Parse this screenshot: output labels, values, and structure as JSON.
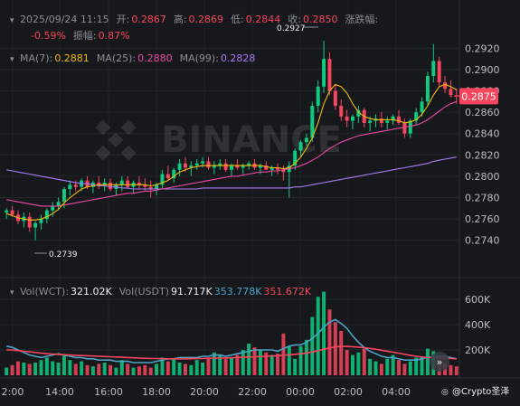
{
  "header": {
    "line1": [
      {
        "text": "2025/09/24 11:15",
        "color": "#8b8e96"
      },
      {
        "text": "开:",
        "color": "#8b8e96"
      },
      {
        "text": "0.2867",
        "color": "#f6465d"
      },
      {
        "text": "高:",
        "color": "#8b8e96"
      },
      {
        "text": "0.2869",
        "color": "#f6465d"
      },
      {
        "text": "低:",
        "color": "#8b8e96"
      },
      {
        "text": "0.2844",
        "color": "#f6465d"
      },
      {
        "text": "收:",
        "color": "#8b8e96"
      },
      {
        "text": "0.2850",
        "color": "#f6465d"
      },
      {
        "text": "涨跌幅:",
        "color": "#8b8e96"
      }
    ],
    "line2": [
      {
        "text": "-0.59%",
        "color": "#f6465d"
      },
      {
        "text": "振幅:",
        "color": "#8b8e96"
      },
      {
        "text": "0.87%",
        "color": "#f6465d"
      }
    ],
    "ma": [
      {
        "text": "MA(7):",
        "color": "#8b8e96"
      },
      {
        "text": "0.2881",
        "color": "#f0b90b"
      },
      {
        "text": "MA(25):",
        "color": "#8b8e96"
      },
      {
        "text": "0.2880",
        "color": "#e84aa3"
      },
      {
        "text": "MA(99):",
        "color": "#8b8e96"
      },
      {
        "text": "0.2828",
        "color": "#a57bf5"
      }
    ],
    "vol": [
      {
        "text": "Vol(WCT):",
        "color": "#8b8e96"
      },
      {
        "text": "321.02K",
        "color": "#eaecef"
      },
      {
        "text": "Vol(USDT)",
        "color": "#8b8e96"
      },
      {
        "text": "91.717K",
        "color": "#eaecef"
      },
      {
        "text": "353.778K",
        "color": "#4ba3c7"
      },
      {
        "text": "351.672K",
        "color": "#f6465d"
      }
    ]
  },
  "price_badge": "0.2875",
  "high_label": "0.2927",
  "low_label": "0.2739",
  "watermark": "BINANCE",
  "footer_brand": "@Crypto圣泽",
  "colors": {
    "up": "#0ecb81",
    "down": "#f6465d",
    "ma7": "#f0b90b",
    "ma25": "#e84aa3",
    "ma99": "#a57bf5",
    "vol_ma1": "#4ba3c7",
    "vol_ma2": "#f6465d"
  },
  "chart_data": {
    "type": "candlestick",
    "y_ticks": [
      "0.2920",
      "0.2900",
      "0.2880",
      "0.2860",
      "0.2840",
      "0.2820",
      "0.2800",
      "0.2780",
      "0.2760",
      "0.2740"
    ],
    "ylim": [
      0.2727,
      0.2933
    ],
    "vol_ticks": [
      "600K",
      "400K",
      "200K"
    ],
    "vol_max": 700000,
    "x_ticks": [
      "2:00",
      "14:00",
      "16:00",
      "18:00",
      "20:00",
      "22:00",
      "00:00",
      "02:00",
      "04:00"
    ],
    "candles": [
      [
        0.2766,
        0.277,
        0.276,
        0.2768,
        60000
      ],
      [
        0.2768,
        0.2772,
        0.2762,
        0.2764,
        80000
      ],
      [
        0.2764,
        0.2768,
        0.2755,
        0.2758,
        110000
      ],
      [
        0.2758,
        0.2766,
        0.2752,
        0.2762,
        100000
      ],
      [
        0.2762,
        0.2766,
        0.2748,
        0.2752,
        90000
      ],
      [
        0.2752,
        0.2758,
        0.274,
        0.2756,
        100000
      ],
      [
        0.2756,
        0.2764,
        0.275,
        0.276,
        120000
      ],
      [
        0.276,
        0.277,
        0.2756,
        0.2768,
        140000
      ],
      [
        0.2768,
        0.2776,
        0.2762,
        0.2772,
        110000
      ],
      [
        0.2772,
        0.278,
        0.2768,
        0.2776,
        100000
      ],
      [
        0.2776,
        0.279,
        0.277,
        0.2788,
        160000
      ],
      [
        0.2788,
        0.2796,
        0.2782,
        0.2792,
        120000
      ],
      [
        0.2792,
        0.2796,
        0.2786,
        0.279,
        90000
      ],
      [
        0.279,
        0.2798,
        0.2786,
        0.2796,
        110000
      ],
      [
        0.2796,
        0.28,
        0.2788,
        0.279,
        80000
      ],
      [
        0.279,
        0.2796,
        0.2784,
        0.2794,
        70000
      ],
      [
        0.2794,
        0.28,
        0.2788,
        0.2792,
        90000
      ],
      [
        0.2792,
        0.2798,
        0.2786,
        0.2794,
        100000
      ],
      [
        0.2794,
        0.2798,
        0.2786,
        0.2788,
        80000
      ],
      [
        0.2788,
        0.2794,
        0.2782,
        0.2792,
        60000
      ],
      [
        0.2792,
        0.28,
        0.2786,
        0.2796,
        120000
      ],
      [
        0.2796,
        0.28,
        0.2788,
        0.279,
        90000
      ],
      [
        0.279,
        0.2796,
        0.2784,
        0.2794,
        60000
      ],
      [
        0.2794,
        0.28,
        0.2788,
        0.2792,
        70000
      ],
      [
        0.2792,
        0.2798,
        0.2786,
        0.279,
        80000
      ],
      [
        0.279,
        0.2796,
        0.278,
        0.2788,
        60000
      ],
      [
        0.2788,
        0.2794,
        0.2782,
        0.2792,
        90000
      ],
      [
        0.2792,
        0.2806,
        0.2788,
        0.2802,
        140000
      ],
      [
        0.2802,
        0.281,
        0.2796,
        0.2798,
        110000
      ],
      [
        0.2798,
        0.2808,
        0.2794,
        0.2806,
        130000
      ],
      [
        0.2806,
        0.2816,
        0.28,
        0.2812,
        100000
      ],
      [
        0.2812,
        0.2818,
        0.2804,
        0.2808,
        90000
      ],
      [
        0.2808,
        0.2814,
        0.28,
        0.281,
        80000
      ],
      [
        0.281,
        0.2816,
        0.2806,
        0.2812,
        120000
      ],
      [
        0.2812,
        0.2818,
        0.2808,
        0.2814,
        100000
      ],
      [
        0.2814,
        0.2818,
        0.2806,
        0.2808,
        140000
      ],
      [
        0.2808,
        0.2814,
        0.2802,
        0.281,
        180000
      ],
      [
        0.281,
        0.2816,
        0.2806,
        0.2812,
        160000
      ],
      [
        0.2812,
        0.2816,
        0.2804,
        0.2806,
        130000
      ],
      [
        0.2806,
        0.2812,
        0.28,
        0.281,
        140000
      ],
      [
        0.281,
        0.2816,
        0.2806,
        0.2808,
        160000
      ],
      [
        0.2808,
        0.2812,
        0.2802,
        0.281,
        200000
      ],
      [
        0.281,
        0.2814,
        0.2806,
        0.2812,
        250000
      ],
      [
        0.2812,
        0.2816,
        0.2806,
        0.2808,
        220000
      ],
      [
        0.2808,
        0.2812,
        0.2802,
        0.281,
        200000
      ],
      [
        0.281,
        0.2814,
        0.2806,
        0.2806,
        180000
      ],
      [
        0.2806,
        0.281,
        0.28,
        0.2808,
        160000
      ],
      [
        0.2808,
        0.2812,
        0.2802,
        0.2806,
        170000
      ],
      [
        0.2806,
        0.281,
        0.2796,
        0.2804,
        330000
      ],
      [
        0.2804,
        0.2814,
        0.278,
        0.281,
        230000
      ],
      [
        0.281,
        0.2826,
        0.2806,
        0.2824,
        130000
      ],
      [
        0.2824,
        0.2834,
        0.2818,
        0.2832,
        230000
      ],
      [
        0.2832,
        0.284,
        0.2828,
        0.2836,
        280000
      ],
      [
        0.2836,
        0.287,
        0.2832,
        0.2866,
        460000
      ],
      [
        0.2866,
        0.289,
        0.286,
        0.2884,
        620000
      ],
      [
        0.2884,
        0.2927,
        0.2878,
        0.291,
        660000
      ],
      [
        0.291,
        0.2916,
        0.2876,
        0.288,
        520000
      ],
      [
        0.288,
        0.2886,
        0.2862,
        0.2866,
        420000
      ],
      [
        0.2866,
        0.2872,
        0.2852,
        0.2856,
        350000
      ],
      [
        0.2856,
        0.2862,
        0.2846,
        0.2852,
        200000
      ],
      [
        0.2852,
        0.2858,
        0.2844,
        0.2856,
        160000
      ],
      [
        0.2856,
        0.2866,
        0.285,
        0.2862,
        180000
      ],
      [
        0.2862,
        0.2864,
        0.2846,
        0.285,
        210000
      ],
      [
        0.285,
        0.2856,
        0.2842,
        0.2852,
        130000
      ],
      [
        0.2852,
        0.2858,
        0.2846,
        0.2854,
        110000
      ],
      [
        0.2854,
        0.286,
        0.2846,
        0.285,
        90000
      ],
      [
        0.285,
        0.2856,
        0.2844,
        0.2852,
        130000
      ],
      [
        0.2852,
        0.2858,
        0.2848,
        0.2856,
        160000
      ],
      [
        0.2856,
        0.2862,
        0.2848,
        0.285,
        120000
      ],
      [
        0.285,
        0.2854,
        0.2836,
        0.284,
        90000
      ],
      [
        0.284,
        0.2854,
        0.2836,
        0.2852,
        110000
      ],
      [
        0.2852,
        0.2864,
        0.2848,
        0.286,
        140000
      ],
      [
        0.286,
        0.2874,
        0.2856,
        0.287,
        150000
      ],
      [
        0.287,
        0.2898,
        0.2866,
        0.2894,
        210000
      ],
      [
        0.2894,
        0.2924,
        0.2888,
        0.2908,
        190000
      ],
      [
        0.2908,
        0.2912,
        0.2884,
        0.2888,
        120000
      ],
      [
        0.2888,
        0.2894,
        0.2878,
        0.2882,
        90000
      ],
      [
        0.2882,
        0.289,
        0.2874,
        0.2876,
        80000
      ],
      [
        0.2876,
        0.2882,
        0.2868,
        0.2875,
        70000
      ]
    ],
    "ma7": [
      0.2765,
      0.2763,
      0.2761,
      0.276,
      0.2759,
      0.2759,
      0.276,
      0.2762,
      0.2765,
      0.2769,
      0.2775,
      0.278,
      0.2784,
      0.2788,
      0.279,
      0.2791,
      0.2792,
      0.2792,
      0.2792,
      0.2792,
      0.2792,
      0.2792,
      0.2792,
      0.2792,
      0.2792,
      0.2791,
      0.2792,
      0.2794,
      0.2796,
      0.28,
      0.2804,
      0.2806,
      0.2808,
      0.2809,
      0.281,
      0.281,
      0.281,
      0.281,
      0.281,
      0.281,
      0.281,
      0.281,
      0.281,
      0.281,
      0.281,
      0.2809,
      0.2808,
      0.2808,
      0.2807,
      0.2808,
      0.2812,
      0.2818,
      0.2826,
      0.2836,
      0.285,
      0.2868,
      0.288,
      0.2886,
      0.2884,
      0.2878,
      0.2868,
      0.286,
      0.2856,
      0.2854,
      0.2853,
      0.2853,
      0.2853,
      0.2853,
      0.2852,
      0.285,
      0.2851,
      0.2853,
      0.2858,
      0.2866,
      0.2876,
      0.2884,
      0.2886,
      0.2884,
      0.2881
    ],
    "ma25": [
      0.2778,
      0.2777,
      0.2776,
      0.2775,
      0.2774,
      0.2773,
      0.2772,
      0.2772,
      0.2772,
      0.2772,
      0.2773,
      0.2774,
      0.2775,
      0.2776,
      0.2777,
      0.2778,
      0.2779,
      0.278,
      0.2781,
      0.2782,
      0.2783,
      0.2784,
      0.2784,
      0.2785,
      0.2786,
      0.2786,
      0.2787,
      0.2788,
      0.2789,
      0.279,
      0.2791,
      0.2792,
      0.2793,
      0.2794,
      0.2795,
      0.2796,
      0.2797,
      0.2798,
      0.2799,
      0.28,
      0.28,
      0.2801,
      0.2802,
      0.2803,
      0.2804,
      0.2804,
      0.2805,
      0.2805,
      0.2806,
      0.2807,
      0.2808,
      0.281,
      0.2812,
      0.2815,
      0.2818,
      0.2822,
      0.2826,
      0.2829,
      0.2832,
      0.2834,
      0.2836,
      0.2838,
      0.2839,
      0.284,
      0.2841,
      0.2842,
      0.2843,
      0.2844,
      0.2845,
      0.2846,
      0.2847,
      0.2848,
      0.285,
      0.2853,
      0.2857,
      0.2861,
      0.2865,
      0.2868,
      0.287
    ],
    "ma99": [
      0.2806,
      0.2805,
      0.2804,
      0.2803,
      0.2802,
      0.2801,
      0.28,
      0.2799,
      0.2798,
      0.2797,
      0.2796,
      0.2795,
      0.2794,
      0.2793,
      0.2793,
      0.2792,
      0.2791,
      0.2791,
      0.279,
      0.279,
      0.2789,
      0.2789,
      0.2788,
      0.2788,
      0.2788,
      0.2788,
      0.2788,
      0.2788,
      0.2788,
      0.2788,
      0.2788,
      0.2788,
      0.2788,
      0.2788,
      0.2789,
      0.2789,
      0.2789,
      0.2789,
      0.2789,
      0.2789,
      0.2789,
      0.2789,
      0.2789,
      0.2789,
      0.2789,
      0.2789,
      0.2789,
      0.2789,
      0.2789,
      0.2789,
      0.279,
      0.279,
      0.2791,
      0.2792,
      0.2793,
      0.2794,
      0.2795,
      0.2796,
      0.2797,
      0.2798,
      0.2799,
      0.28,
      0.2801,
      0.2802,
      0.2803,
      0.2804,
      0.2805,
      0.2806,
      0.2807,
      0.2808,
      0.2809,
      0.281,
      0.2811,
      0.2812,
      0.2814,
      0.2815,
      0.2816,
      0.2817,
      0.2818
    ],
    "vol_ma1": [
      230000,
      220000,
      200000,
      180000,
      160000,
      150000,
      140000,
      150000,
      160000,
      170000,
      160000,
      150000,
      140000,
      140000,
      130000,
      130000,
      120000,
      120000,
      120000,
      110000,
      110000,
      110000,
      100000,
      100000,
      100000,
      100000,
      110000,
      120000,
      130000,
      130000,
      140000,
      140000,
      140000,
      140000,
      150000,
      150000,
      160000,
      160000,
      150000,
      160000,
      170000,
      180000,
      190000,
      200000,
      200000,
      200000,
      200000,
      190000,
      210000,
      230000,
      240000,
      240000,
      260000,
      290000,
      330000,
      380000,
      420000,
      440000,
      410000,
      370000,
      310000,
      260000,
      220000,
      190000,
      170000,
      150000,
      140000,
      140000,
      130000,
      120000,
      120000,
      120000,
      130000,
      140000,
      150000,
      150000,
      150000,
      140000,
      130000
    ],
    "vol_ma2": [
      200000,
      200000,
      195000,
      190000,
      185000,
      180000,
      175000,
      170000,
      168000,
      165000,
      162000,
      160000,
      158000,
      156000,
      154000,
      152000,
      150000,
      148000,
      146000,
      144000,
      142000,
      140000,
      138000,
      136000,
      134000,
      133000,
      132000,
      131000,
      130000,
      130000,
      130000,
      130000,
      131000,
      132000,
      133000,
      134000,
      135000,
      136000,
      137000,
      138000,
      140000,
      142000,
      144000,
      146000,
      148000,
      150000,
      152000,
      154000,
      158000,
      162000,
      166000,
      170000,
      176000,
      184000,
      194000,
      206000,
      216000,
      224000,
      228000,
      228000,
      226000,
      222000,
      218000,
      212000,
      206000,
      198000,
      190000,
      182000,
      174000,
      166000,
      158000,
      150000,
      144000,
      140000,
      138000,
      136000,
      134000,
      132000,
      130000
    ]
  }
}
